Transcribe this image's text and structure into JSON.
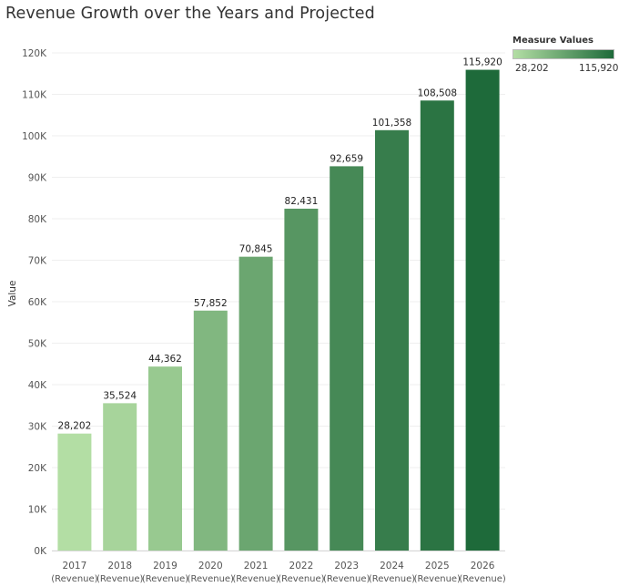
{
  "chart_data": {
    "type": "bar",
    "title": "Revenue Growth over the Years and Projected",
    "xlabel": "",
    "ylabel": "Value",
    "ylim": [
      0,
      120000
    ],
    "yticks": [
      0,
      10000,
      20000,
      30000,
      40000,
      50000,
      60000,
      70000,
      80000,
      90000,
      100000,
      110000,
      120000
    ],
    "ytick_labels": [
      "0K",
      "10K",
      "20K",
      "30K",
      "40K",
      "50K",
      "60K",
      "70K",
      "80K",
      "90K",
      "100K",
      "110K",
      "120K"
    ],
    "categories": [
      "2017",
      "2018",
      "2019",
      "2020",
      "2021",
      "2022",
      "2023",
      "2024",
      "2025",
      "2026"
    ],
    "category_sublabel": "(Revenue)",
    "values": [
      28202,
      35524,
      44362,
      57852,
      70845,
      82431,
      92659,
      101358,
      108508,
      115920
    ],
    "data_labels": [
      "28,202",
      "35,524",
      "44,362",
      "57,852",
      "70,845",
      "82,431",
      "92,659",
      "101,358",
      "108,508",
      "115,920"
    ],
    "grid": true,
    "legend": {
      "title": "Measure Values",
      "min_label": "28,202",
      "max_label": "115,920",
      "min_color": "#b3deA4",
      "max_color": "#1e6a3a",
      "placement": "top-right"
    }
  }
}
